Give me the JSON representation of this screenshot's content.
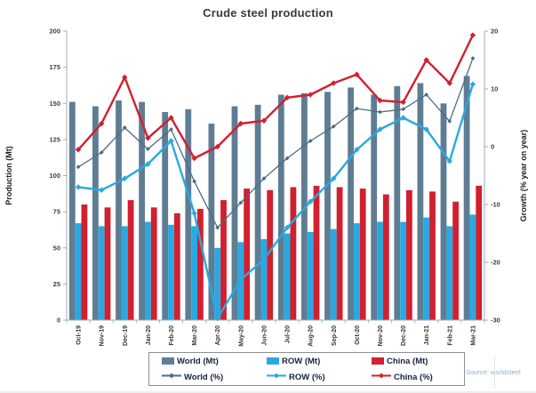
{
  "page": {
    "title": "Crude steel production",
    "source": "Source: worldsteel"
  },
  "axes": {
    "left_label": "Production (Mt)",
    "right_label": "Growth (% year on year)",
    "left_min": 0,
    "left_max": 200,
    "left_step": 25,
    "right_min": -30,
    "right_max": 20,
    "right_step": 10
  },
  "colors": {
    "world_bar": "#5e7d93",
    "row_bar": "#29a9e1",
    "china_bar": "#d1202f",
    "world_line": "#4a6d85",
    "row_line": "#29a9e1",
    "china_line": "#d1202f",
    "axis": "#a3abb2",
    "tick_text": "#404040",
    "title_text": "#3a3a3a",
    "legend_text": "#15243d",
    "source_text": "#8fafc9"
  },
  "chart_data": {
    "type": "bar",
    "subtype": "grouped-bars-with-lines-combo",
    "title": "Crude steel production",
    "xlabel": "",
    "ylabel_left": "Production (Mt)",
    "ylabel_right": "Growth (% year on year)",
    "ylim_left": [
      0,
      200
    ],
    "ylim_right": [
      -30,
      20
    ],
    "grid": false,
    "legend_position": "bottom",
    "categories": [
      "Oct-19",
      "Nov-19",
      "Dec-19",
      "Jan-20",
      "Feb-20",
      "Mar-20",
      "Apr-20",
      "May-20",
      "Jun-20",
      "Jul-20",
      "Aug-20",
      "Sep-20",
      "Oct-20",
      "Nov-20",
      "Dec-20",
      "Jan-21",
      "Feb-21",
      "Mar-21"
    ],
    "series": [
      {
        "name": "World (Mt)",
        "kind": "bar",
        "axis": "left",
        "color_key": "world_bar",
        "values": [
          151,
          148,
          152,
          151,
          144,
          146,
          136,
          148,
          149,
          156,
          157,
          158,
          161,
          156,
          162,
          164,
          150,
          169
        ]
      },
      {
        "name": "ROW (Mt)",
        "kind": "bar",
        "axis": "left",
        "color_key": "row_bar",
        "values": [
          67,
          65,
          65,
          68,
          66,
          65,
          50,
          54,
          56,
          60,
          61,
          63,
          67,
          68,
          68,
          71,
          65,
          73
        ]
      },
      {
        "name": "China (Mt)",
        "kind": "bar",
        "axis": "left",
        "color_key": "china_bar",
        "values": [
          80,
          78,
          83,
          78,
          74,
          77,
          83,
          91,
          90,
          92,
          93,
          92,
          91,
          87,
          90,
          89,
          82,
          93
        ]
      },
      {
        "name": "World (%)",
        "kind": "line",
        "axis": "right",
        "color_key": "world_line",
        "values": [
          -3.5,
          -1,
          3.3,
          -0.4,
          3,
          -6,
          -14,
          -9.7,
          -5.5,
          -2,
          1,
          3.5,
          6.6,
          6,
          6.5,
          9,
          4.4,
          15.3
        ]
      },
      {
        "name": "ROW (%)",
        "kind": "line",
        "axis": "right",
        "color_key": "row_line",
        "values": [
          -7,
          -7.5,
          -5.5,
          -3,
          1,
          -11.5,
          -29.7,
          -23,
          -19.5,
          -14,
          -9.5,
          -5.5,
          -0.5,
          3,
          5,
          3,
          -2.5,
          10.8
        ]
      },
      {
        "name": "China (%)",
        "kind": "line",
        "axis": "right",
        "color_key": "china_line",
        "values": [
          -0.5,
          4,
          12,
          1.5,
          5,
          -2,
          0,
          4,
          4.5,
          8.5,
          9,
          11,
          12.5,
          8,
          7.7,
          15,
          11,
          19.3
        ]
      }
    ]
  },
  "legend": {
    "items": [
      {
        "label": "World (Mt)",
        "swatch": "bar",
        "color_key": "world_bar"
      },
      {
        "label": "ROW (Mt)",
        "swatch": "bar",
        "color_key": "row_bar"
      },
      {
        "label": "China (Mt)",
        "swatch": "bar",
        "color_key": "china_bar"
      },
      {
        "label": "World (%)",
        "swatch": "line",
        "color_key": "world_line"
      },
      {
        "label": "ROW (%)",
        "swatch": "line",
        "color_key": "row_line"
      },
      {
        "label": "China (%)",
        "swatch": "line",
        "color_key": "china_line"
      }
    ]
  }
}
